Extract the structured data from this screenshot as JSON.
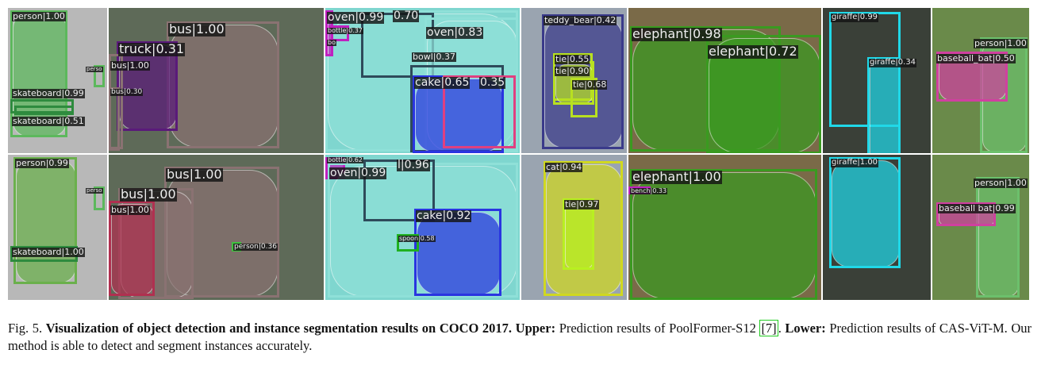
{
  "figure": {
    "rows": [
      {
        "name": "upper",
        "panels": [
          {
            "bg": "#b8b8b8",
            "detections": [
              {
                "label": "person|1.00",
                "color": "#5cb85c"
              },
              {
                "label": "skateboard|0.99",
                "color": "#2e8b3e"
              },
              {
                "label": "skateboard|0.51",
                "color": "#2e8b3e"
              },
              {
                "label": "perso",
                "color": "#5cb85c"
              }
            ]
          },
          {
            "bg": "#5e6a58",
            "detections": [
              {
                "label": "bus|1.00",
                "color": "#8a7272"
              },
              {
                "label": "truck|0.31",
                "color": "#5a1a7a"
              },
              {
                "label": "bus|1.00",
                "color": "#8a7272"
              },
              {
                "label": "bus|0.30",
                "color": "#8a7272"
              }
            ]
          },
          {
            "bg": "#7fd6cf",
            "detections": [
              {
                "label": "oven|0.99",
                "color": "#8fe0d8"
              },
              {
                "label": "0.70",
                "color": "#2e4a5a"
              },
              {
                "label": "oven|0.83",
                "color": "#8fe0d8"
              },
              {
                "label": "bowl|0.37",
                "color": "#2e4a5a"
              },
              {
                "label": "cake|0.65",
                "color": "#2a35e0"
              },
              {
                "label": "0.35",
                "color": "#e04080"
              },
              {
                "label": "bottle|0.37",
                "color": "#c020c0"
              },
              {
                "label": "bo",
                "color": "#c020c0"
              }
            ]
          },
          {
            "bg": "#9aa4b0",
            "detections": [
              {
                "label": "teddy_bear|0.42",
                "color": "#3a3a8a"
              },
              {
                "label": "tie|0.55",
                "color": "#b8e020"
              },
              {
                "label": "tie|0.90",
                "color": "#b8e020"
              },
              {
                "label": "tie|0.68",
                "color": "#b8e020"
              }
            ]
          },
          {
            "bg": "#7a6a48",
            "detections": [
              {
                "label": "elephant|0.98",
                "color": "#3a9a20"
              },
              {
                "label": "elephant|0.72",
                "color": "#3a9a20"
              }
            ]
          },
          {
            "bg": "#3a4038",
            "detections": [
              {
                "label": "giraffe|0.99",
                "color": "#20d8e8"
              },
              {
                "label": "giraffe|0.34",
                "color": "#20d8e8"
              }
            ]
          },
          {
            "bg": "#6a8a4a",
            "detections": [
              {
                "label": "person|1.00",
                "color": "#6cc06c"
              },
              {
                "label": "baseball_bat|0.50",
                "color": "#d040a0"
              }
            ]
          }
        ]
      },
      {
        "name": "lower",
        "panels": [
          {
            "bg": "#b8b8b8",
            "detections": [
              {
                "label": "person|0.99",
                "color": "#6ab04c"
              },
              {
                "label": "skateboard|1.00",
                "color": "#2e8b3e"
              },
              {
                "label": "perso",
                "color": "#5cb85c"
              }
            ]
          },
          {
            "bg": "#5e6a58",
            "detections": [
              {
                "label": "bus|1.00",
                "color": "#8a7272"
              },
              {
                "label": "bus|1.00",
                "color": "#8a7272"
              },
              {
                "label": "bus|1.00",
                "color": "#b03050"
              },
              {
                "label": "person|0.36",
                "color": "#40c040"
              }
            ]
          },
          {
            "bg": "#7fd6cf",
            "detections": [
              {
                "label": "bottle|0.62",
                "color": "#c020c0"
              },
              {
                "label": "oven|0.99",
                "color": "#8fe0d8"
              },
              {
                "label": "l|0.96",
                "color": "#2e4a5a"
              },
              {
                "label": "cake|0.92",
                "color": "#2a35e0"
              },
              {
                "label": "spoon|0.58",
                "color": "#20b020"
              }
            ]
          },
          {
            "bg": "#9aa4b0",
            "detections": [
              {
                "label": "cat|0.94",
                "color": "#d0d820"
              },
              {
                "label": "tie|0.97",
                "color": "#b8f020"
              }
            ]
          },
          {
            "bg": "#7a6a48",
            "detections": [
              {
                "label": "elephant|1.00",
                "color": "#3a9a20"
              },
              {
                "label": "bench|0.33",
                "color": "#c020c0"
              }
            ]
          },
          {
            "bg": "#3a4038",
            "detections": [
              {
                "label": "giraffe|1.00",
                "color": "#20d8e8"
              }
            ]
          },
          {
            "bg": "#6a8a4a",
            "detections": [
              {
                "label": "person|1.00",
                "color": "#6cc06c"
              },
              {
                "label": "baseball bat|0.99",
                "color": "#d040a0"
              }
            ]
          }
        ]
      }
    ]
  },
  "caption": {
    "fig_label": "Fig. 5.",
    "bold_title": "Visualization of object detection and instance segmentation results on COCO 2017.",
    "upper_label": "Upper:",
    "upper_text": "Prediction results of PoolFormer-S12",
    "citation": "[7]",
    "upper_end": ".",
    "lower_label": "Lower:",
    "lower_text": "Prediction results of CAS-ViT-M. Our method is able to detect and segment instances accurately."
  }
}
